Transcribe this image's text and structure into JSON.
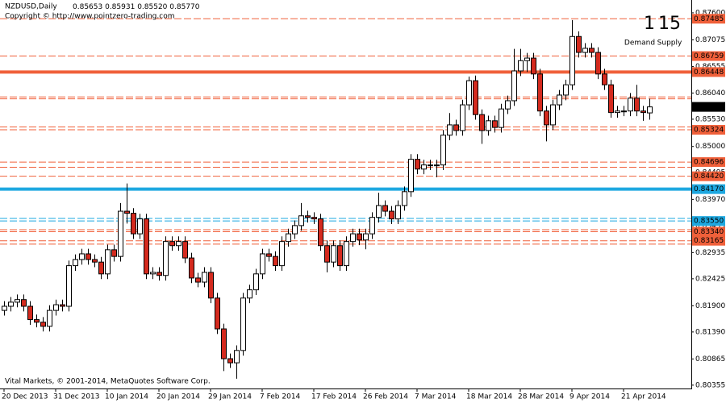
{
  "header": {
    "symbol": "NZDUSD,Daily",
    "ohlc": [
      "0.85653",
      "0.85931",
      "0.85520",
      "0.85770"
    ],
    "copyright": "Copyright © http://www.pointzero-trading.com",
    "footer": "Vital Markets, © 2001-2014, MetaQuotes Software Corp."
  },
  "counter": {
    "demand_count": "1",
    "supply_count": "15",
    "demand_label": "Demand",
    "supply_label": "Supply",
    "demand_color": "#3aa8e8",
    "supply_color": "#f0603a"
  },
  "chart_data": {
    "type": "candlestick",
    "up_color": "#ffffff",
    "down_color": "#d42a1e",
    "ylim": [
      0.8029,
      0.8785
    ],
    "yticks": [
      {
        "value": 0.876,
        "label": "0.87600"
      },
      {
        "value": 0.87075,
        "label": "0.87075"
      },
      {
        "value": 0.86555,
        "label": "0.86555"
      },
      {
        "value": 0.8604,
        "label": "0.86040"
      },
      {
        "value": 0.8553,
        "label": "0.85530"
      },
      {
        "value": 0.85,
        "label": "0.85000"
      },
      {
        "value": 0.84495,
        "label": "0.84495"
      },
      {
        "value": 0.8397,
        "label": "0.83970"
      },
      {
        "value": 0.83455,
        "label": "0.83455"
      },
      {
        "value": 0.82935,
        "label": "0.82935"
      },
      {
        "value": 0.82425,
        "label": "0.82425"
      },
      {
        "value": 0.819,
        "label": "0.81900"
      },
      {
        "value": 0.8139,
        "label": "0.81390"
      },
      {
        "value": 0.80865,
        "label": "0.80865"
      },
      {
        "value": 0.80355,
        "label": "0.80355"
      }
    ],
    "xticks": [
      {
        "value": 0,
        "label": "20 Dec 2013"
      },
      {
        "value": 8,
        "label": "31 Dec 2013"
      },
      {
        "value": 16,
        "label": "10 Jan 2014"
      },
      {
        "value": 24,
        "label": "20 Jan 2014"
      },
      {
        "value": 32,
        "label": "29 Jan 2014"
      },
      {
        "value": 40,
        "label": "7 Feb 2014"
      },
      {
        "value": 48,
        "label": "17 Feb 2014"
      },
      {
        "value": 56,
        "label": "26 Feb 2014"
      },
      {
        "value": 64,
        "label": "7 Mar 2014"
      },
      {
        "value": 72,
        "label": "18 Mar 2014"
      },
      {
        "value": 80,
        "label": "28 Mar 2014"
      },
      {
        "value": 88,
        "label": "9 Apr 2014"
      },
      {
        "value": 96,
        "label": "21 Apr 2014"
      }
    ],
    "levels": [
      {
        "value": 0.87485,
        "label": "0.87485",
        "color": "#f0603a",
        "style": "dashed"
      },
      {
        "value": 0.86759,
        "label": "0.86759",
        "color": "#f0603a",
        "style": "dashed"
      },
      {
        "value": 0.86448,
        "label": "0.86448",
        "color": "#f0603a",
        "style": "solid"
      },
      {
        "value": 0.85963,
        "color": "#f0603a",
        "style": "dashed"
      },
      {
        "value": 0.85926,
        "color": "#f0603a",
        "style": "dashed"
      },
      {
        "value": 0.8538,
        "color": "#f0603a",
        "style": "dashed"
      },
      {
        "value": 0.85324,
        "label": "0.85324",
        "color": "#f0603a",
        "style": "dashed"
      },
      {
        "value": 0.84696,
        "label": "0.84696",
        "color": "#f0603a",
        "style": "dashed"
      },
      {
        "value": 0.84596,
        "color": "#f0603a",
        "style": "dashed"
      },
      {
        "value": 0.8442,
        "label": "0.84420",
        "color": "#f0603a",
        "style": "dashed"
      },
      {
        "value": 0.8417,
        "label": "0.84170",
        "color": "#1ea8e0",
        "style": "solid"
      },
      {
        "value": 0.836,
        "color": "#1ea8e0",
        "style": "dashed"
      },
      {
        "value": 0.8355,
        "label": "0.83550",
        "color": "#1ea8e0",
        "style": "dashed"
      },
      {
        "value": 0.8338,
        "color": "#f0603a",
        "style": "dashed"
      },
      {
        "value": 0.8334,
        "label": "0.83340",
        "color": "#f0603a",
        "style": "dashed"
      },
      {
        "value": 0.83165,
        "label": "0.83165",
        "color": "#f0603a",
        "style": "dashed"
      },
      {
        "value": 0.831,
        "color": "#f0603a",
        "style": "dashed"
      }
    ],
    "open": [
      0.8181,
      0.8189,
      0.8197,
      0.8202,
      0.8189,
      0.8163,
      0.8158,
      0.815,
      0.8181,
      0.8192,
      0.8189,
      0.8268,
      0.828,
      0.8291,
      0.828,
      0.8275,
      0.8252,
      0.8299,
      0.8286,
      0.8374,
      0.837,
      0.833,
      0.8359,
      0.8252,
      0.8255,
      0.8249,
      0.8315,
      0.8307,
      0.8315,
      0.8283,
      0.8244,
      0.8236,
      0.8255,
      0.8205,
      0.8145,
      0.8087,
      0.8079,
      0.8103,
      0.8205,
      0.8221,
      0.8252,
      0.8291,
      0.8286,
      0.8268,
      0.8315,
      0.833,
      0.8346,
      0.8365,
      0.8362,
      0.8359,
      0.8307,
      0.8275,
      0.8307,
      0.8268,
      0.8315,
      0.833,
      0.8318,
      0.833,
      0.8362,
      0.8385,
      0.8374,
      0.8359,
      0.8385,
      0.8412,
      0.8475,
      0.8456,
      0.8464,
      0.8464,
      0.8464,
      0.8522,
      0.8542,
      0.8531,
      0.8581,
      0.8628,
      0.8562,
      0.8531,
      0.855,
      0.8537,
      0.8573,
      0.8589,
      0.8647,
      0.8667,
      0.8672,
      0.8641,
      0.8569,
      0.8542,
      0.8581,
      0.86,
      0.862,
      0.8714,
      0.8683,
      0.8691,
      0.8683,
      0.8641,
      0.862,
      0.8566,
      0.8569,
      0.8569,
      0.8594,
      0.8569,
      0.85653
    ],
    "high": [
      0.8199,
      0.8207,
      0.8212,
      0.8212,
      0.8199,
      0.8173,
      0.8168,
      0.8191,
      0.8202,
      0.8202,
      0.8278,
      0.829,
      0.8301,
      0.8301,
      0.829,
      0.8285,
      0.8309,
      0.8309,
      0.839,
      0.8428,
      0.838,
      0.8369,
      0.8369,
      0.8265,
      0.8265,
      0.8325,
      0.8325,
      0.8325,
      0.8325,
      0.8293,
      0.8254,
      0.8265,
      0.8265,
      0.8215,
      0.8155,
      0.8097,
      0.8113,
      0.8215,
      0.8231,
      0.8262,
      0.8301,
      0.8301,
      0.8296,
      0.8325,
      0.834,
      0.8356,
      0.839,
      0.8375,
      0.8372,
      0.8369,
      0.8317,
      0.8317,
      0.8317,
      0.8325,
      0.834,
      0.834,
      0.834,
      0.8372,
      0.841,
      0.8395,
      0.8384,
      0.8395,
      0.8422,
      0.8485,
      0.8485,
      0.8474,
      0.8474,
      0.8474,
      0.8532,
      0.8565,
      0.8552,
      0.8591,
      0.8636,
      0.8638,
      0.8572,
      0.856,
      0.856,
      0.8583,
      0.8599,
      0.869,
      0.869,
      0.8682,
      0.8682,
      0.8651,
      0.8579,
      0.8591,
      0.861,
      0.863,
      0.8746,
      0.8724,
      0.8701,
      0.8701,
      0.8693,
      0.8651,
      0.863,
      0.8579,
      0.8579,
      0.8604,
      0.862,
      0.8579,
      0.85931
    ],
    "low": [
      0.8171,
      0.8179,
      0.8187,
      0.8179,
      0.8153,
      0.8148,
      0.814,
      0.814,
      0.8171,
      0.8179,
      0.8179,
      0.8258,
      0.827,
      0.827,
      0.8265,
      0.8242,
      0.8242,
      0.8276,
      0.8276,
      0.835,
      0.832,
      0.832,
      0.8242,
      0.8242,
      0.8239,
      0.8239,
      0.8297,
      0.8297,
      0.8273,
      0.8234,
      0.8226,
      0.8226,
      0.8195,
      0.8135,
      0.8063,
      0.8069,
      0.8048,
      0.8093,
      0.8195,
      0.8211,
      0.8242,
      0.8276,
      0.8258,
      0.8258,
      0.8305,
      0.832,
      0.8336,
      0.8352,
      0.8349,
      0.8297,
      0.8255,
      0.8265,
      0.8258,
      0.8258,
      0.8305,
      0.8308,
      0.83,
      0.832,
      0.8352,
      0.8364,
      0.8349,
      0.8349,
      0.8375,
      0.8402,
      0.8446,
      0.8446,
      0.8454,
      0.844,
      0.8454,
      0.8512,
      0.8521,
      0.8521,
      0.8571,
      0.8552,
      0.8505,
      0.8521,
      0.8527,
      0.8527,
      0.8563,
      0.8579,
      0.8637,
      0.8645,
      0.8631,
      0.8559,
      0.851,
      0.8532,
      0.8571,
      0.859,
      0.861,
      0.8673,
      0.8673,
      0.8673,
      0.8631,
      0.861,
      0.8556,
      0.8556,
      0.8559,
      0.8559,
      0.8559,
      0.855,
      0.8552
    ],
    "close": [
      0.8189,
      0.8197,
      0.8202,
      0.8189,
      0.8163,
      0.8158,
      0.815,
      0.8181,
      0.8192,
      0.8189,
      0.8268,
      0.828,
      0.8291,
      0.828,
      0.8275,
      0.8252,
      0.8299,
      0.8286,
      0.8374,
      0.837,
      0.833,
      0.8359,
      0.8252,
      0.8255,
      0.8249,
      0.8315,
      0.8307,
      0.8315,
      0.8283,
      0.8244,
      0.8236,
      0.8255,
      0.8205,
      0.8145,
      0.8087,
      0.8079,
      0.8103,
      0.8205,
      0.8221,
      0.8252,
      0.8291,
      0.8286,
      0.8268,
      0.8315,
      0.833,
      0.8346,
      0.8365,
      0.8362,
      0.8359,
      0.8307,
      0.8275,
      0.8307,
      0.8268,
      0.8315,
      0.833,
      0.8318,
      0.833,
      0.8362,
      0.8385,
      0.8374,
      0.8359,
      0.8385,
      0.8412,
      0.8475,
      0.8456,
      0.8464,
      0.8464,
      0.8464,
      0.8522,
      0.8542,
      0.8531,
      0.8581,
      0.8628,
      0.8562,
      0.8531,
      0.855,
      0.8537,
      0.8573,
      0.8589,
      0.8647,
      0.8667,
      0.8672,
      0.8641,
      0.8569,
      0.8542,
      0.8581,
      0.86,
      0.862,
      0.8714,
      0.8683,
      0.8691,
      0.8683,
      0.8641,
      0.862,
      0.8566,
      0.8569,
      0.8569,
      0.8594,
      0.8569,
      0.8566,
      0.8577
    ]
  }
}
